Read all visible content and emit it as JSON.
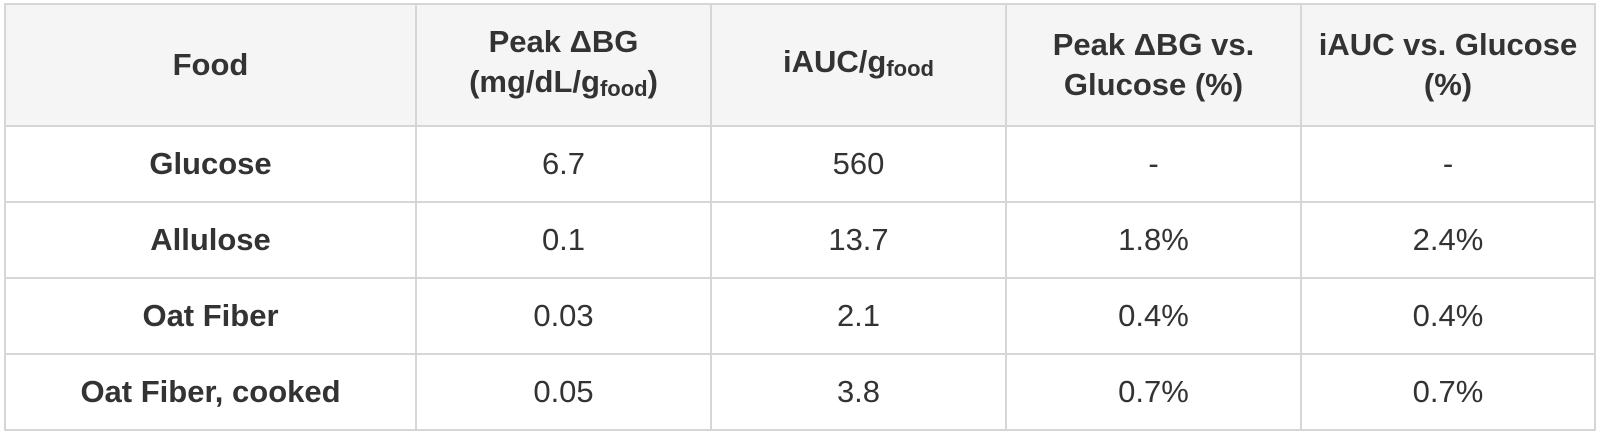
{
  "table": {
    "header": [
      {
        "text": "Food"
      },
      {
        "text": "Peak ΔBG (mg/dL/g",
        "sub": "food",
        "tail": ")"
      },
      {
        "text": "iAUC/g",
        "sub": "food"
      },
      {
        "text": "Peak ΔBG vs. Glucose (%)"
      },
      {
        "text": "iAUC vs. Glucose (%)"
      }
    ],
    "rows": [
      [
        "Glucose",
        "6.7",
        "560",
        "-",
        "-"
      ],
      [
        "Allulose",
        "0.1",
        "13.7",
        "1.8%",
        "2.4%"
      ],
      [
        "Oat Fiber",
        "0.03",
        "2.1",
        "0.4%",
        "0.4%"
      ],
      [
        "Oat Fiber, cooked",
        "0.05",
        "3.8",
        "0.7%",
        "0.7%"
      ]
    ]
  }
}
